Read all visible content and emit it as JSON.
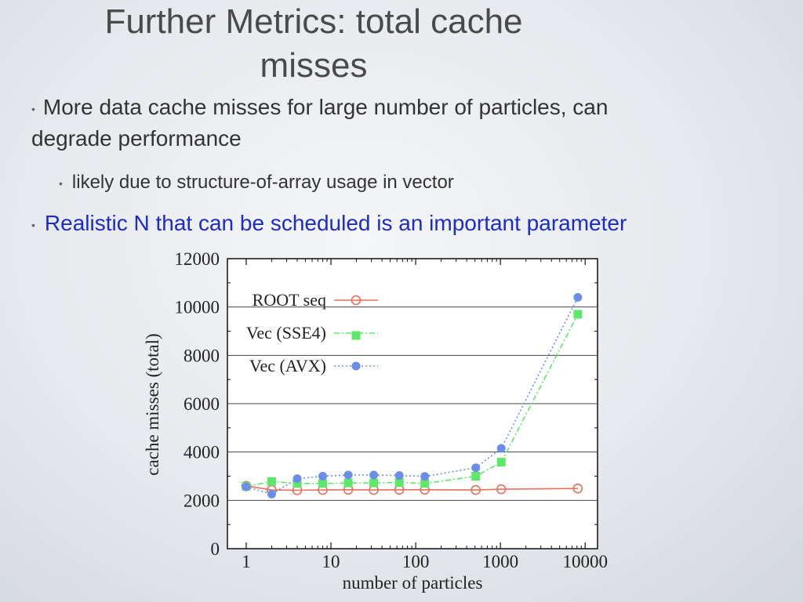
{
  "slide": {
    "title_line1": "Further Metrics: total cache",
    "title_line2": "misses",
    "bullet1_line1": "More data cache misses for large number of particles, can",
    "bullet1_line2": "degrade performance",
    "sub_bullet": "likely due to structure-of-array usage in vector",
    "bullet2": "Realistic N that can be scheduled is an important parameter",
    "bullet_glyph": "•"
  },
  "chart_data": {
    "type": "line",
    "xlabel": "number of particles",
    "ylabel": "cache misses (total)",
    "xscale": "log",
    "xlim": [
      0.6,
      14000
    ],
    "ylim": [
      0,
      12000
    ],
    "xticks": [
      1,
      10,
      100,
      1000,
      10000
    ],
    "xtick_labels": [
      "1",
      "10",
      "100",
      "1000",
      "10000"
    ],
    "yticks": [
      0,
      2000,
      4000,
      6000,
      8000,
      10000,
      12000
    ],
    "ytick_labels": [
      "0",
      "2000",
      "4000",
      "6000",
      "8000",
      "10000",
      "12000"
    ],
    "grid": "horizontal",
    "legend": "top-left",
    "series": [
      {
        "name": "ROOT seq",
        "marker": "open-circle",
        "line": "solid",
        "color": "#e8705a",
        "x": [
          1,
          2,
          4,
          8,
          16,
          32,
          64,
          128,
          512,
          1024,
          8192
        ],
        "y": [
          2600,
          2430,
          2420,
          2430,
          2440,
          2430,
          2440,
          2440,
          2430,
          2460,
          2490
        ]
      },
      {
        "name": "Vec (SSE4)",
        "marker": "filled-square",
        "line": "dash-dot",
        "color": "#5ee86a",
        "x": [
          1,
          2,
          4,
          8,
          16,
          32,
          64,
          128,
          512,
          1024,
          8192
        ],
        "y": [
          2580,
          2780,
          2700,
          2700,
          2720,
          2720,
          2740,
          2700,
          3000,
          3580,
          9700
        ]
      },
      {
        "name": "Vec (AVX)",
        "marker": "filled-circle",
        "line": "dotted",
        "color": "#6b8fe8",
        "x": [
          1,
          2,
          4,
          8,
          16,
          32,
          64,
          128,
          512,
          1024,
          8192
        ],
        "y": [
          2560,
          2260,
          2900,
          3000,
          3050,
          3050,
          3030,
          2990,
          3350,
          4150,
          10400
        ]
      }
    ]
  }
}
